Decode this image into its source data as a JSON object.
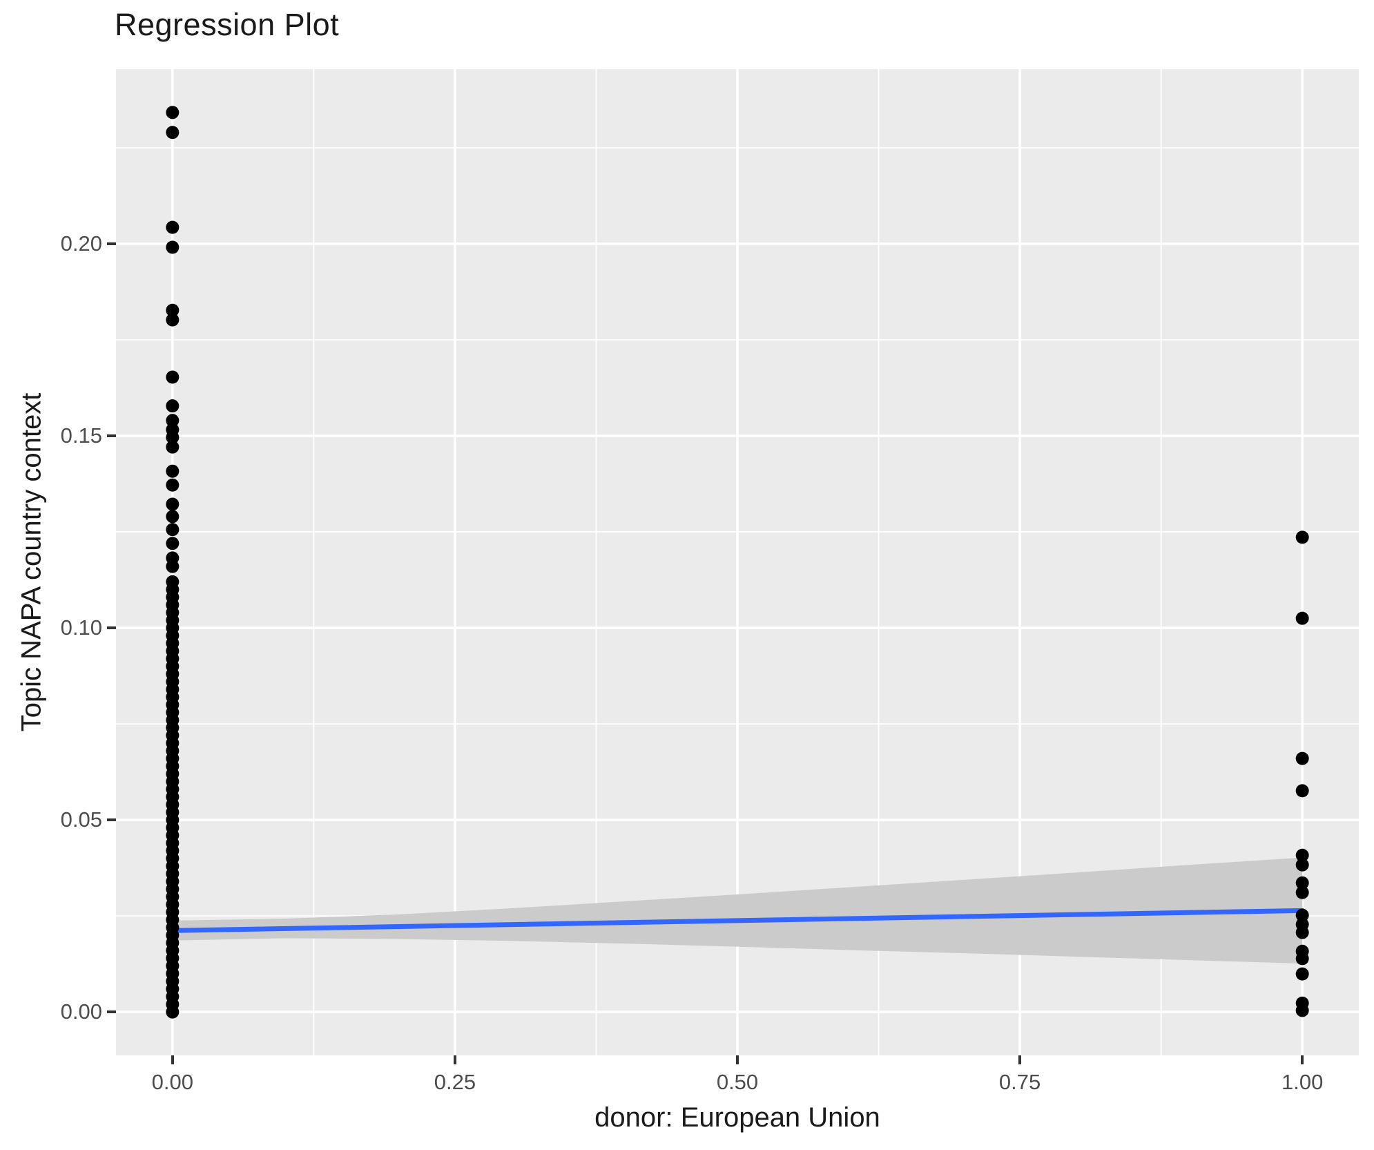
{
  "title": "Regression Plot",
  "chart_data": {
    "type": "scatter",
    "title": "Regression Plot",
    "xlabel": "donor: European Union",
    "ylabel": "Topic NAPA country context",
    "xlim": [
      -0.05,
      1.05
    ],
    "ylim": [
      -0.0113,
      0.2455
    ],
    "grid": "on",
    "legend": "none",
    "x_axis": {
      "tick_values": [
        0,
        0.25,
        0.5,
        0.75,
        1.0
      ],
      "tick_labels": [
        "0.00",
        "0.25",
        "0.50",
        "0.75",
        "1.00"
      ],
      "minor_tick_values": [
        0.125,
        0.375,
        0.625,
        0.875
      ]
    },
    "y_axis": {
      "tick_values": [
        0,
        0.05,
        0.1,
        0.15,
        0.2
      ],
      "tick_labels": [
        "0.00",
        "0.05",
        "0.10",
        "0.15",
        "0.20"
      ],
      "minor_tick_values": [
        0.025,
        0.075,
        0.125,
        0.175,
        0.225
      ]
    },
    "series": [
      {
        "name": "points at donor = 0",
        "x": 0,
        "values": [
          0.0,
          0.002,
          0.004,
          0.006,
          0.008,
          0.01,
          0.012,
          0.014,
          0.016,
          0.018,
          0.02,
          0.022,
          0.024,
          0.026,
          0.028,
          0.03,
          0.032,
          0.034,
          0.036,
          0.038,
          0.04,
          0.042,
          0.044,
          0.046,
          0.048,
          0.05,
          0.052,
          0.054,
          0.056,
          0.058,
          0.06,
          0.062,
          0.064,
          0.066,
          0.068,
          0.07,
          0.072,
          0.074,
          0.076,
          0.078,
          0.08,
          0.082,
          0.084,
          0.086,
          0.088,
          0.09,
          0.092,
          0.094,
          0.096,
          0.098,
          0.1,
          0.102,
          0.104,
          0.106,
          0.108,
          0.11,
          0.112,
          0.116,
          0.1182,
          0.122,
          0.1256,
          0.129,
          0.1322,
          0.1372,
          0.1408,
          0.1471,
          0.1496,
          0.1516,
          0.154,
          0.1578,
          0.1653,
          0.1802,
          0.1827,
          0.1991,
          0.2043,
          0.229,
          0.2342
        ]
      },
      {
        "name": "points at donor = 1",
        "x": 1,
        "values": [
          0.0004,
          0.0023,
          0.0099,
          0.0139,
          0.0158,
          0.0207,
          0.0228,
          0.0252,
          0.0311,
          0.0336,
          0.0383,
          0.0408,
          0.0576,
          0.066,
          0.1025,
          0.1236
        ]
      }
    ],
    "regression_line": {
      "x": [
        0,
        1
      ],
      "y": [
        0.0212,
        0.0264
      ]
    },
    "confidence_band": {
      "x": [
        0,
        0.1,
        0.2,
        0.3,
        0.4,
        0.5,
        0.6,
        0.7,
        0.8,
        0.9,
        1.0
      ],
      "upper": [
        0.0238,
        0.0243,
        0.0254,
        0.027,
        0.0288,
        0.0306,
        0.0325,
        0.0344,
        0.0363,
        0.0383,
        0.0402
      ],
      "lower": [
        0.0186,
        0.0192,
        0.019,
        0.0185,
        0.0178,
        0.017,
        0.0161,
        0.0153,
        0.0144,
        0.0135,
        0.0126
      ]
    },
    "colors": {
      "panel_background": "#EBEBEB",
      "gridline": "#FFFFFF",
      "point": "#000000",
      "regression_line": "#3366FF",
      "confidence_band": "#CBCBCB",
      "tick_label_text": "#4D4D4D",
      "axis_title_text": "#1A1A1A",
      "tick_mark": "#333333"
    }
  }
}
